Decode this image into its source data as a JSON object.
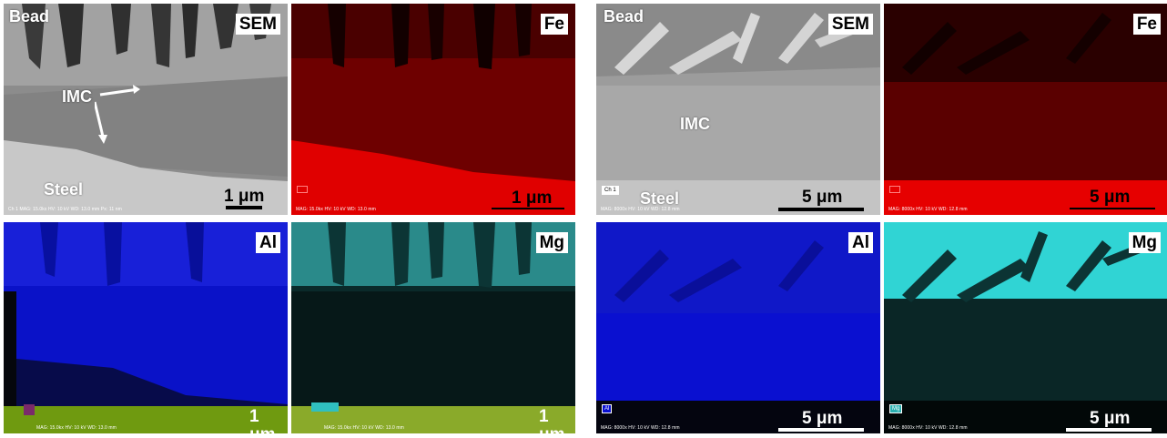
{
  "left_figure": {
    "sem": {
      "tag": "SEM",
      "bead": "Bead",
      "imc": "IMC",
      "steel": "Steel",
      "scale": "1 μm",
      "meta": "Ch 1   MAG: 15.0kx   HV: 10 kV   WD: 13.0 mm   Px: 11 nm",
      "ch": "Ch 1"
    },
    "fe": {
      "tag": "Fe",
      "scale": "1 μm",
      "meta": "MAG: 15.0kx   HV: 10 kV   WD: 13.0 mm"
    },
    "al": {
      "tag": "Al",
      "scale": "1 μm",
      "meta": "MAG: 15.0kx   HV: 10 kV   WD: 13.0 mm"
    },
    "mg": {
      "tag": "Mg",
      "scale": "1 μm",
      "meta": "MAG: 15.0kx   HV: 10 kV   WD: 13.0 mm"
    }
  },
  "right_figure": {
    "sem": {
      "tag": "SEM",
      "bead": "Bead",
      "imc": "IMC",
      "steel": "Steel",
      "scale": "5 μm",
      "ch": "Ch 1",
      "meta": "MAG: 8000x   HV: 10 kV   WD: 12.8 mm"
    },
    "fe": {
      "tag": "Fe",
      "scale": "5 μm",
      "meta": "MAG: 8000x   HV: 10 kV   WD: 12.8 mm"
    },
    "al": {
      "tag": "Al",
      "scale": "5 μm",
      "meta": "MAG: 8000x   HV: 10 kV   WD: 12.8 mm",
      "box": "Al"
    },
    "mg": {
      "tag": "Mg",
      "scale": "5 μm",
      "meta": "MAG: 8000x   HV: 10 kV   WD: 12.8 mm",
      "box": "Mg"
    }
  },
  "colors": {
    "fe": "#e00000",
    "al": "#0a10d8",
    "mg": "#30e0e0",
    "sem": "#8a8a8a",
    "overlay": "#6f9a10"
  }
}
